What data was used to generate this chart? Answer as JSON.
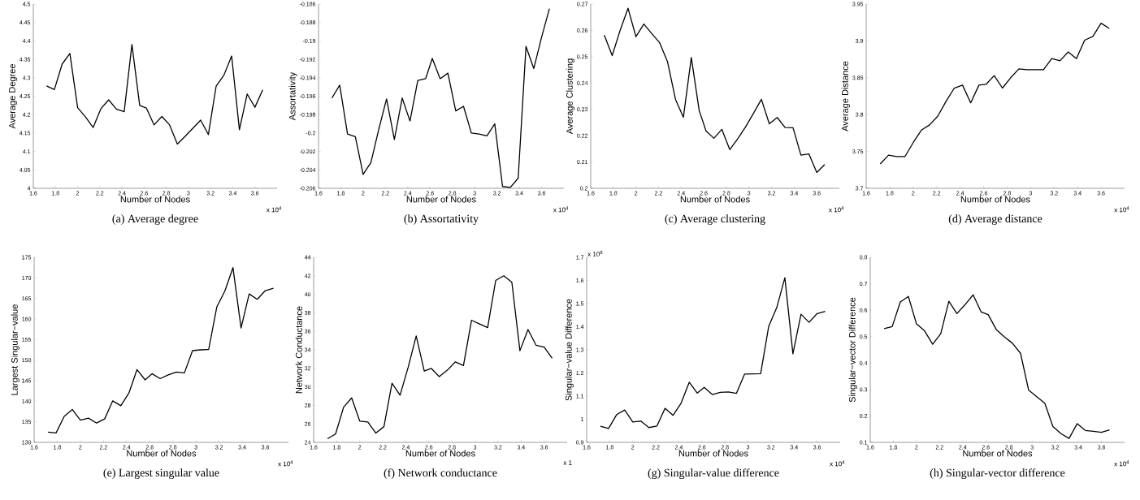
{
  "chart_data": [
    {
      "type": "line",
      "title": "(a)  Average degree",
      "xlabel": "Number of Nodes",
      "ylabel": "Average Degree",
      "annotations": [
        "x 10$^{4}$"
      ],
      "color": "#000000",
      "marker": "none",
      "line_style": "solid",
      "x": [
        1.72,
        1.79,
        1.86,
        1.93,
        2.0,
        2.07,
        2.14,
        2.21,
        2.28,
        2.35,
        2.42,
        2.49,
        2.56,
        2.62,
        2.69,
        2.76,
        2.83,
        2.9,
        2.97,
        3.04,
        3.11,
        3.18,
        3.25,
        3.32,
        3.39,
        3.46,
        3.53,
        3.6,
        3.67
      ],
      "values": [
        4.278,
        4.268,
        4.337,
        4.366,
        4.219,
        4.194,
        4.165,
        4.216,
        4.24,
        4.215,
        4.208,
        4.39,
        4.225,
        4.218,
        4.172,
        4.195,
        4.172,
        4.12,
        4.141,
        4.163,
        4.185,
        4.146,
        4.277,
        4.307,
        4.359,
        4.159,
        4.256,
        4.22,
        4.267
      ],
      "xlim": [
        1.6,
        3.8
      ],
      "xticks": [
        1.6,
        1.8,
        2,
        2.2,
        2.4,
        2.6,
        2.8,
        3,
        3.2,
        3.4,
        3.6
      ],
      "ylim": [
        4,
        4.5
      ],
      "yticks": [
        4,
        4.05,
        4.1,
        4.15,
        4.2,
        4.25,
        4.3,
        4.35,
        4.4,
        4.45,
        4.5
      ]
    },
    {
      "type": "line",
      "title": "(b)  Assortativity",
      "xlabel": "Number of Nodes",
      "ylabel": "Assortativity",
      "annotations": [
        "x 10$^{4}$"
      ],
      "color": "#000000",
      "marker": "none",
      "line_style": "solid",
      "x": [
        1.72,
        1.79,
        1.86,
        1.93,
        2.0,
        2.07,
        2.14,
        2.21,
        2.28,
        2.35,
        2.42,
        2.49,
        2.56,
        2.62,
        2.69,
        2.76,
        2.83,
        2.9,
        2.97,
        3.04,
        3.11,
        3.18,
        3.25,
        3.32,
        3.39,
        3.46,
        3.53,
        3.6,
        3.67
      ],
      "values": [
        -0.1962,
        -0.1948,
        -0.2001,
        -0.2004,
        -0.2045,
        -0.2032,
        -0.1996,
        -0.1963,
        -0.2007,
        -0.1962,
        -0.1987,
        -0.1943,
        -0.1941,
        -0.1919,
        -0.1941,
        -0.1935,
        -0.1976,
        -0.1971,
        -0.2,
        -0.2001,
        -0.2003,
        -0.199,
        -0.2058,
        -0.2059,
        -0.2049,
        -0.1906,
        -0.193,
        -0.1896,
        -0.1865
      ],
      "xlim": [
        1.6,
        3.8
      ],
      "xticks": [
        1.6,
        1.8,
        2,
        2.2,
        2.4,
        2.6,
        2.8,
        3,
        3.2,
        3.4,
        3.6
      ],
      "ylim": [
        -0.206,
        -0.186
      ],
      "yticks": [
        -0.206,
        -0.204,
        -0.202,
        -0.2,
        -0.198,
        -0.196,
        -0.194,
        -0.192,
        -0.19,
        -0.188,
        -0.186
      ]
    },
    {
      "type": "line",
      "title": "(c)  Average clustering",
      "xlabel": "Number of Nodes",
      "ylabel": "Average Clustering",
      "annotations": [
        "x 10$^{4}$"
      ],
      "color": "#000000",
      "marker": "none",
      "line_style": "solid",
      "x": [
        1.72,
        1.79,
        1.86,
        1.93,
        2.0,
        2.07,
        2.14,
        2.21,
        2.28,
        2.35,
        2.42,
        2.49,
        2.56,
        2.62,
        2.69,
        2.76,
        2.83,
        2.9,
        2.97,
        3.04,
        3.11,
        3.18,
        3.25,
        3.32,
        3.39,
        3.46,
        3.53,
        3.6,
        3.67
      ],
      "values": [
        0.2582,
        0.2504,
        0.26,
        0.2684,
        0.2576,
        0.2624,
        0.2588,
        0.2553,
        0.248,
        0.2338,
        0.227,
        0.2497,
        0.2295,
        0.2218,
        0.219,
        0.2224,
        0.2147,
        0.2188,
        0.2233,
        0.2285,
        0.2338,
        0.2245,
        0.2269,
        0.2231,
        0.223,
        0.2126,
        0.2131,
        0.206,
        0.209
      ],
      "xlim": [
        1.6,
        3.8
      ],
      "xticks": [
        1.6,
        1.8,
        2,
        2.2,
        2.4,
        2.6,
        2.8,
        3,
        3.2,
        3.4,
        3.6
      ],
      "ylim": [
        0.2,
        0.27
      ],
      "yticks": [
        0.2,
        0.21,
        0.22,
        0.23,
        0.24,
        0.25,
        0.26,
        0.27
      ]
    },
    {
      "type": "line",
      "title": "(d)  Average distance",
      "xlabel": "Number of Nodes",
      "ylabel": "Average Distance",
      "annotations": [
        "x 10$^{4}$"
      ],
      "color": "#000000",
      "marker": "none",
      "line_style": "solid",
      "x": [
        1.72,
        1.79,
        1.86,
        1.93,
        2.0,
        2.07,
        2.14,
        2.21,
        2.28,
        2.35,
        2.42,
        2.49,
        2.56,
        2.62,
        2.69,
        2.76,
        2.83,
        2.9,
        2.97,
        3.04,
        3.11,
        3.18,
        3.25,
        3.32,
        3.39,
        3.46,
        3.53,
        3.6,
        3.67
      ],
      "values": [
        3.733,
        3.745,
        3.743,
        3.743,
        3.762,
        3.779,
        3.786,
        3.798,
        3.818,
        3.836,
        3.84,
        3.816,
        3.84,
        3.841,
        3.853,
        3.836,
        3.85,
        3.862,
        3.861,
        3.861,
        3.861,
        3.876,
        3.873,
        3.885,
        3.876,
        3.901,
        3.906,
        3.924,
        3.917
      ],
      "xlim": [
        1.6,
        3.8
      ],
      "xticks": [
        1.6,
        1.8,
        2,
        2.2,
        2.4,
        2.6,
        2.8,
        3,
        3.2,
        3.4,
        3.6
      ],
      "ylim": [
        3.7,
        3.95
      ],
      "yticks": [
        3.7,
        3.75,
        3.8,
        3.85,
        3.9,
        3.95
      ]
    },
    {
      "type": "line",
      "title": "(e)  Largest singular value",
      "xlabel": "Number of Nodes",
      "ylabel": "Largest Singular−value",
      "annotations": [
        "x 10$^{4}$"
      ],
      "color": "#000000",
      "marker": "none",
      "line_style": "solid",
      "x": [
        1.72,
        1.79,
        1.86,
        1.93,
        2.0,
        2.07,
        2.14,
        2.21,
        2.28,
        2.35,
        2.42,
        2.49,
        2.56,
        2.62,
        2.69,
        2.76,
        2.83,
        2.9,
        2.97,
        3.04,
        3.11,
        3.18,
        3.25,
        3.32,
        3.39,
        3.46,
        3.53,
        3.6,
        3.67
      ],
      "values": [
        132.5,
        132.3,
        136.3,
        138.0,
        135.4,
        135.9,
        134.7,
        135.7,
        140.1,
        138.9,
        142.0,
        147.7,
        145.2,
        146.7,
        145.5,
        146.4,
        147.1,
        146.9,
        152.3,
        152.5,
        152.6,
        162.9,
        166.8,
        172.5,
        157.8,
        166.1,
        164.8,
        166.9,
        167.5
      ],
      "xlim": [
        1.6,
        3.8
      ],
      "xticks": [
        1.6,
        1.8,
        2,
        2.2,
        2.4,
        2.6,
        2.8,
        3,
        3.2,
        3.4,
        3.6
      ],
      "ylim": [
        130,
        175
      ],
      "yticks": [
        130,
        135,
        140,
        145,
        150,
        155,
        160,
        165,
        170,
        175
      ]
    },
    {
      "type": "line",
      "title": "(f)  Network conductance",
      "xlabel": "Number of Nodes",
      "ylabel": "Network Conductance",
      "annotations": [
        "x 1"
      ],
      "color": "#000000",
      "marker": "none",
      "line_style": "solid",
      "x": [
        1.72,
        1.79,
        1.86,
        1.93,
        2.0,
        2.07,
        2.14,
        2.21,
        2.28,
        2.35,
        2.42,
        2.49,
        2.56,
        2.62,
        2.69,
        2.76,
        2.83,
        2.9,
        2.97,
        3.04,
        3.11,
        3.18,
        3.25,
        3.32,
        3.39,
        3.46,
        3.53,
        3.6,
        3.67
      ],
      "values": [
        24.4,
        24.9,
        27.8,
        28.8,
        26.3,
        26.2,
        25.0,
        25.7,
        30.4,
        29.1,
        32.1,
        35.5,
        31.7,
        32.0,
        31.1,
        31.8,
        32.7,
        32.3,
        37.2,
        36.8,
        36.4,
        41.5,
        42.0,
        41.3,
        33.9,
        36.2,
        34.5,
        34.3,
        33.1
      ],
      "xlim": [
        1.6,
        3.8
      ],
      "xticks": [
        1.6,
        1.8,
        2,
        2.2,
        2.4,
        2.6,
        2.8,
        3,
        3.2,
        3.4,
        3.6
      ],
      "ylim": [
        24,
        44
      ],
      "yticks": [
        24,
        26,
        28,
        30,
        32,
        34,
        36,
        38,
        40,
        42,
        44
      ]
    },
    {
      "type": "line",
      "title": "(g)  Singular-value difference",
      "xlabel": "Number of Nodes",
      "ylabel": "Singular−value Difference",
      "annotations": [
        "x 10$^{4}$",
        "x 10$^{6}$"
      ],
      "color": "#000000",
      "marker": "none",
      "line_style": "solid",
      "x": [
        1.72,
        1.79,
        1.86,
        1.93,
        2.0,
        2.07,
        2.14,
        2.21,
        2.28,
        2.35,
        2.42,
        2.49,
        2.56,
        2.62,
        2.69,
        2.76,
        2.83,
        2.9,
        2.97,
        3.04,
        3.11,
        3.18,
        3.25,
        3.32,
        3.39,
        3.46,
        3.53,
        3.6,
        3.67
      ],
      "values": [
        0.97,
        0.96,
        1.02,
        1.04,
        0.988,
        0.992,
        0.964,
        0.971,
        1.047,
        1.017,
        1.07,
        1.16,
        1.113,
        1.138,
        1.107,
        1.116,
        1.118,
        1.112,
        1.195,
        1.196,
        1.197,
        1.402,
        1.483,
        1.612,
        1.283,
        1.454,
        1.419,
        1.457,
        1.466
      ],
      "xlim": [
        1.6,
        3.8
      ],
      "xticks": [
        1.6,
        1.8,
        2,
        2.2,
        2.4,
        2.6,
        2.8,
        3,
        3.2,
        3.4,
        3.6
      ],
      "ylim": [
        0.9,
        1.7
      ],
      "yticks": [
        0.9,
        1,
        1.1,
        1.2,
        1.3,
        1.4,
        1.5,
        1.6,
        1.7
      ]
    },
    {
      "type": "line",
      "title": "(h)  Singular-vector difference",
      "xlabel": "Number of Nodes",
      "ylabel": "Singular−vector Difference",
      "annotations": [
        "x 10$^{4}$"
      ],
      "color": "#000000",
      "marker": "none",
      "line_style": "solid",
      "x": [
        1.72,
        1.79,
        1.86,
        1.93,
        2.0,
        2.07,
        2.14,
        2.21,
        2.28,
        2.35,
        2.42,
        2.49,
        2.56,
        2.62,
        2.69,
        2.76,
        2.83,
        2.9,
        2.97,
        3.04,
        3.11,
        3.18,
        3.25,
        3.32,
        3.39,
        3.46,
        3.53,
        3.6,
        3.67
      ],
      "values": [
        0.53,
        0.538,
        0.631,
        0.652,
        0.548,
        0.522,
        0.471,
        0.511,
        0.634,
        0.587,
        0.621,
        0.658,
        0.593,
        0.583,
        0.527,
        0.499,
        0.475,
        0.437,
        0.298,
        0.273,
        0.248,
        0.16,
        0.133,
        0.115,
        0.171,
        0.145,
        0.142,
        0.138,
        0.147
      ],
      "xlim": [
        1.6,
        3.8
      ],
      "xticks": [
        1.6,
        1.8,
        2,
        2.2,
        2.4,
        2.6,
        2.8,
        3,
        3.2,
        3.4,
        3.6
      ],
      "ylim": [
        0.1,
        0.8
      ],
      "yticks": [
        0.1,
        0.2,
        0.3,
        0.4,
        0.5,
        0.6,
        0.7,
        0.8
      ]
    }
  ]
}
